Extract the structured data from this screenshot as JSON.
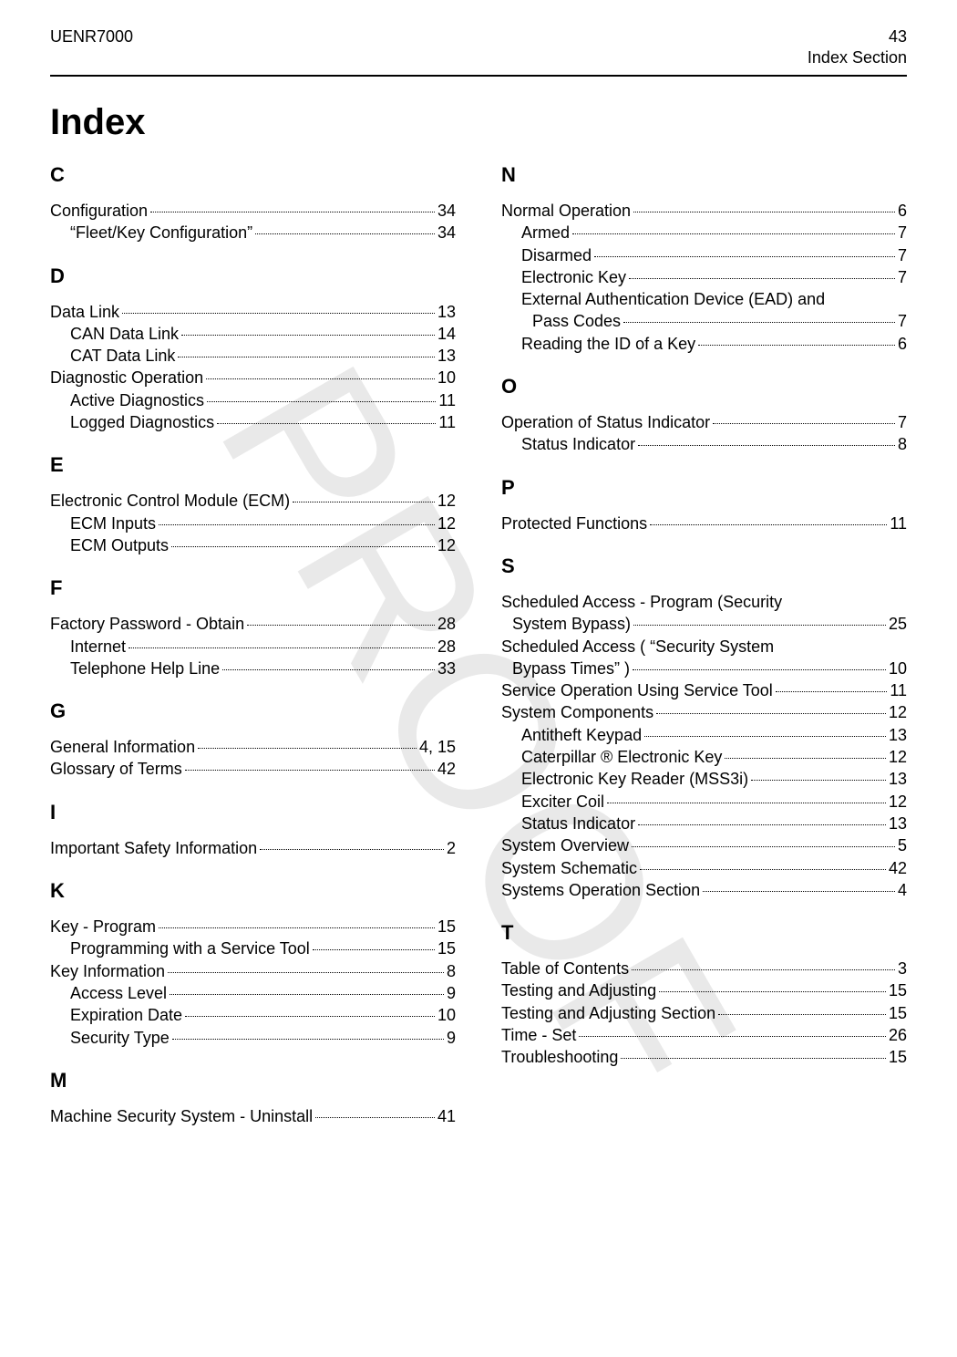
{
  "header": {
    "doc_id": "UENR7000",
    "page_no": "43",
    "section": "Index Section"
  },
  "title": "Index",
  "left": [
    {
      "type": "letter",
      "text": "C"
    },
    {
      "type": "entry",
      "label": "Configuration",
      "page": "34"
    },
    {
      "type": "entry",
      "sub": true,
      "label": "“Fleet/Key Configuration”",
      "page": "34"
    },
    {
      "type": "letter",
      "text": "D"
    },
    {
      "type": "entry",
      "label": "Data Link",
      "page": "13"
    },
    {
      "type": "entry",
      "sub": true,
      "label": "CAN Data Link",
      "page": "14"
    },
    {
      "type": "entry",
      "sub": true,
      "label": "CAT Data Link",
      "page": "13"
    },
    {
      "type": "entry",
      "label": "Diagnostic Operation",
      "page": "10"
    },
    {
      "type": "entry",
      "sub": true,
      "label": "Active Diagnostics",
      "page": "11"
    },
    {
      "type": "entry",
      "sub": true,
      "label": "Logged Diagnostics",
      "page": "11"
    },
    {
      "type": "letter",
      "text": "E"
    },
    {
      "type": "entry",
      "label": "Electronic Control Module (ECM)",
      "page": "12"
    },
    {
      "type": "entry",
      "sub": true,
      "label": "ECM Inputs",
      "page": "12"
    },
    {
      "type": "entry",
      "sub": true,
      "label": "ECM Outputs",
      "page": "12"
    },
    {
      "type": "letter",
      "text": "F"
    },
    {
      "type": "entry",
      "label": "Factory Password - Obtain",
      "page": "28"
    },
    {
      "type": "entry",
      "sub": true,
      "label": "Internet",
      "page": "28"
    },
    {
      "type": "entry",
      "sub": true,
      "label": "Telephone Help Line",
      "page": "33"
    },
    {
      "type": "letter",
      "text": "G"
    },
    {
      "type": "entry",
      "label": "General Information",
      "page": "4, 15"
    },
    {
      "type": "entry",
      "label": "Glossary of Terms",
      "page": "42"
    },
    {
      "type": "letter",
      "text": "I"
    },
    {
      "type": "entry",
      "label": "Important Safety Information",
      "page": "2"
    },
    {
      "type": "letter",
      "text": "K"
    },
    {
      "type": "entry",
      "label": "Key - Program",
      "page": "15"
    },
    {
      "type": "entry",
      "sub": true,
      "label": "Programming with a Service Tool",
      "page": "15"
    },
    {
      "type": "entry",
      "label": "Key Information",
      "page": "8"
    },
    {
      "type": "entry",
      "sub": true,
      "label": "Access Level",
      "page": "9"
    },
    {
      "type": "entry",
      "sub": true,
      "label": "Expiration Date",
      "page": "10"
    },
    {
      "type": "entry",
      "sub": true,
      "label": "Security Type",
      "page": "9"
    },
    {
      "type": "letter",
      "text": "M"
    },
    {
      "type": "entry",
      "label": "Machine Security System - Uninstall",
      "page": "41"
    }
  ],
  "right": [
    {
      "type": "letter",
      "text": "N"
    },
    {
      "type": "entry",
      "label": "Normal Operation",
      "page": "6"
    },
    {
      "type": "entry",
      "sub": true,
      "label": "Armed",
      "page": "7"
    },
    {
      "type": "entry",
      "sub": true,
      "label": "Disarmed",
      "page": "7"
    },
    {
      "type": "entry",
      "sub": true,
      "label": "Electronic Key",
      "page": "7"
    },
    {
      "type": "wrap",
      "sub": true,
      "line1": "External Authentication Device (EAD) and",
      "line2": "Pass Codes",
      "page": "7"
    },
    {
      "type": "entry",
      "sub": true,
      "label": "Reading the ID of a Key",
      "page": "6"
    },
    {
      "type": "letter",
      "text": "O"
    },
    {
      "type": "entry",
      "label": "Operation of Status Indicator",
      "page": "7"
    },
    {
      "type": "entry",
      "sub": true,
      "label": "Status Indicator",
      "page": "8"
    },
    {
      "type": "letter",
      "text": "P"
    },
    {
      "type": "entry",
      "label": "Protected Functions",
      "page": "11"
    },
    {
      "type": "letter",
      "text": "S"
    },
    {
      "type": "wrap",
      "line1": "Scheduled Access - Program (Security",
      "line2": "System Bypass)",
      "page": "25"
    },
    {
      "type": "wrap",
      "line1": "Scheduled Access ( “Security System",
      "line2": "Bypass Times” )",
      "page": "10"
    },
    {
      "type": "entry",
      "label": "Service Operation Using Service Tool",
      "page": "11"
    },
    {
      "type": "entry",
      "label": "System Components",
      "page": "12"
    },
    {
      "type": "entry",
      "sub": true,
      "label": "Antitheft Keypad",
      "page": "13"
    },
    {
      "type": "entry",
      "sub": true,
      "label": "Caterpillar ® Electronic Key",
      "page": "12"
    },
    {
      "type": "entry",
      "sub": true,
      "label": "Electronic Key Reader (MSS3i)",
      "page": "13"
    },
    {
      "type": "entry",
      "sub": true,
      "label": "Exciter Coil",
      "page": "12"
    },
    {
      "type": "entry",
      "sub": true,
      "label": "Status Indicator",
      "page": "13"
    },
    {
      "type": "entry",
      "label": "System Overview",
      "page": "5"
    },
    {
      "type": "entry",
      "label": "System Schematic",
      "page": "42"
    },
    {
      "type": "entry",
      "label": "Systems Operation Section",
      "page": "4"
    },
    {
      "type": "letter",
      "text": "T"
    },
    {
      "type": "entry",
      "label": "Table of Contents",
      "page": "3"
    },
    {
      "type": "entry",
      "label": "Testing and Adjusting",
      "page": "15"
    },
    {
      "type": "entry",
      "label": "Testing and Adjusting Section",
      "page": "15"
    },
    {
      "type": "entry",
      "label": "Time - Set",
      "page": "26"
    },
    {
      "type": "entry",
      "label": "Troubleshooting",
      "page": "15"
    }
  ]
}
